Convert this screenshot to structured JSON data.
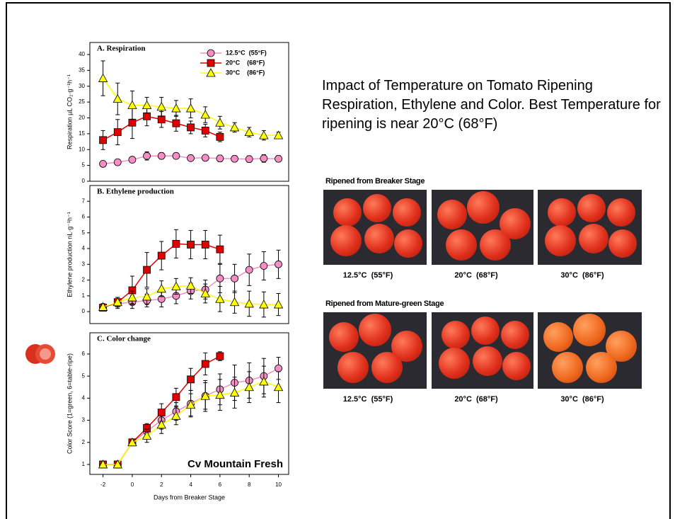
{
  "chart_data": [
    {
      "type": "line",
      "title": "A. Respiration",
      "ylabel": "Respiration µL CO₂·g⁻¹h⁻¹",
      "x": [
        -2,
        -1,
        0,
        1,
        2,
        3,
        4,
        5,
        6,
        7,
        8,
        9,
        10
      ],
      "xlim": [
        -2.9,
        10.7
      ],
      "ylim": [
        0,
        43.8
      ],
      "yticks": [
        0,
        5,
        10,
        15,
        20,
        25,
        30,
        35,
        40
      ],
      "legend": "top-right",
      "series": [
        {
          "name": "12.5°C  (55°F)",
          "color": "#f58ec4",
          "marker": "circle",
          "values": [
            5.5,
            6,
            6.8,
            8,
            8,
            8,
            7.3,
            7.4,
            7.2,
            7.1,
            7,
            7.2,
            7.1
          ],
          "errors": [
            0.5,
            0.5,
            0.8,
            1.3,
            1,
            0.8,
            0.7,
            0.8,
            1,
            1,
            1,
            1.2,
            1
          ]
        },
        {
          "name": "20°C    (68°F)",
          "color": "#e00000",
          "marker": "square",
          "values": [
            13,
            15.5,
            18.5,
            20.5,
            19.5,
            18.3,
            17,
            16,
            14,
            null,
            null,
            null,
            null
          ],
          "errors": [
            3,
            4,
            5,
            3,
            2.5,
            2.5,
            2,
            2,
            1.5,
            null,
            null,
            null,
            null
          ]
        },
        {
          "name": "30°C    (86°F)",
          "color": "#ffff00",
          "marker": "triangle",
          "values": [
            32.5,
            26,
            24,
            24,
            23.5,
            23,
            23,
            21,
            18.5,
            17,
            15.5,
            14.5,
            14.5
          ],
          "errors": [
            5.5,
            5,
            4.5,
            2.5,
            3,
            2.5,
            3,
            2.5,
            2,
            1.5,
            1.5,
            1.5,
            1
          ]
        }
      ]
    },
    {
      "type": "line",
      "title": "B. Ethylene production",
      "ylabel": "Ethylene production nL·g⁻¹h⁻¹",
      "x": [
        -2,
        -1,
        0,
        1,
        2,
        3,
        4,
        5,
        6,
        7,
        8,
        9,
        10
      ],
      "xlim": [
        -2.9,
        10.7
      ],
      "ylim": [
        -0.76,
        8
      ],
      "yticks": [
        0,
        1,
        2,
        3,
        4,
        5,
        6,
        7
      ],
      "series": [
        {
          "color": "#f58ec4",
          "marker": "circle",
          "values": [
            0.3,
            0.5,
            0.6,
            0.7,
            0.8,
            1,
            1.3,
            1.4,
            2.1,
            2.1,
            2.65,
            2.9,
            3
          ],
          "errors": [
            0.2,
            0.3,
            0.4,
            0.4,
            0.5,
            0.5,
            0.5,
            0.6,
            0.9,
            0.9,
            1,
            0.9,
            0.9
          ]
        },
        {
          "color": "#e00000",
          "marker": "square",
          "values": [
            0.25,
            0.6,
            1.35,
            2.65,
            3.55,
            4.3,
            4.25,
            4.25,
            3.95,
            null,
            null,
            null,
            null
          ],
          "errors": [
            0.2,
            0.3,
            0.9,
            1.1,
            0.9,
            0.9,
            0.9,
            0.9,
            0.9,
            null,
            null,
            null,
            null
          ]
        },
        {
          "color": "#ffff00",
          "marker": "triangle",
          "values": [
            0.3,
            0.6,
            0.9,
            0.95,
            1.45,
            1.6,
            1.65,
            1.15,
            0.8,
            0.6,
            0.5,
            0.45,
            0.45
          ],
          "errors": [
            0.2,
            0.3,
            0.4,
            0.5,
            0.5,
            0.5,
            0.5,
            0.6,
            0.8,
            0.7,
            0.8,
            0.8,
            0.7
          ]
        }
      ]
    },
    {
      "type": "line",
      "title": "C. Color change",
      "ylabel": "Color Score (1=green, 6=table-ripe)",
      "xlabel": "Days from Breaker Stage",
      "annotation": "Cv Mountain Fresh",
      "x": [
        -2,
        -1,
        0,
        1,
        2,
        3,
        4,
        5,
        6,
        7,
        8,
        9,
        10
      ],
      "xlim": [
        -2.9,
        10.7
      ],
      "xticks": [
        -2,
        0,
        2,
        4,
        6,
        8,
        10
      ],
      "ylim": [
        0.55,
        6.96
      ],
      "yticks": [
        1,
        2,
        3,
        4,
        5,
        6
      ],
      "series": [
        {
          "color": "#f58ec4",
          "marker": "circle",
          "values": [
            1,
            1,
            2,
            2.5,
            3,
            3.4,
            3.75,
            4.1,
            4.4,
            4.7,
            4.8,
            5,
            5.35
          ],
          "errors": [
            0.05,
            0.05,
            0.1,
            0.3,
            0.4,
            0.4,
            0.6,
            0.7,
            0.7,
            0.8,
            0.8,
            0.8,
            0.5
          ]
        },
        {
          "color": "#e00000",
          "marker": "square",
          "values": [
            1,
            1,
            2,
            2.65,
            3.35,
            4.05,
            4.85,
            5.55,
            5.9,
            null,
            null,
            null,
            null
          ],
          "errors": [
            0.05,
            0.05,
            0.1,
            0.2,
            0.4,
            0.4,
            0.5,
            0.5,
            0.2,
            null,
            null,
            null,
            null
          ]
        },
        {
          "color": "#ffff00",
          "marker": "triangle",
          "values": [
            1,
            1,
            2,
            2.3,
            2.8,
            3.2,
            3.7,
            4.1,
            4.15,
            4.25,
            4.5,
            4.75,
            4.5
          ],
          "errors": [
            0.05,
            0.05,
            0.1,
            0.3,
            0.4,
            0.4,
            0.5,
            0.6,
            0.7,
            0.7,
            0.7,
            0.7,
            0.7
          ]
        }
      ]
    }
  ],
  "slide": {
    "heading": "Impact of Temperature on Tomato Ripening Respiration, Ethylene and Color.  Best Temperature for ripening is near 20°C (68°F)",
    "photo_sets": [
      {
        "title": "Ripened from Breaker Stage",
        "captions": [
          "12.5°C  (55°F)",
          "20°C  (68°F)",
          "30°C  (86°F)"
        ]
      },
      {
        "title": "Ripened from Mature-green Stage",
        "captions": [
          "12.5°C  (55°F)",
          "20°C  (68°F)",
          "30°C  (86°F)"
        ]
      }
    ]
  }
}
